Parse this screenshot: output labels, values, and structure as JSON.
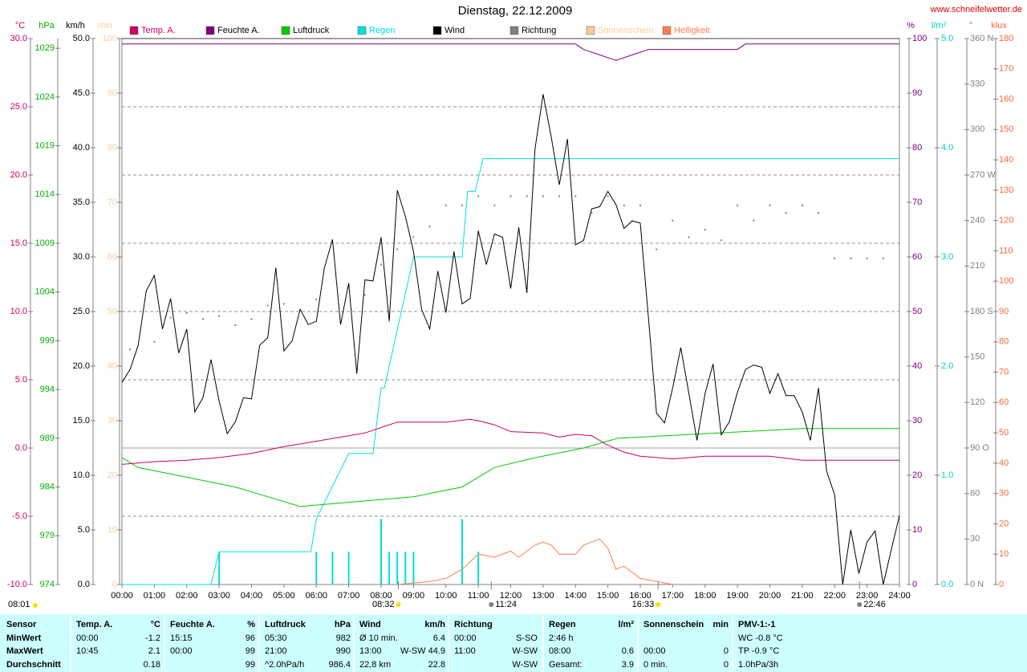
{
  "chart_data": {
    "type": "multi-axis-line",
    "title": "Dienstag, 22.12.2009",
    "source": "www.schneifelwetter.de",
    "report_time": "08:01",
    "xlim": [
      0,
      24
    ],
    "xticks": [
      {
        "value": 0,
        "label": "00:00"
      },
      {
        "value": 1,
        "label": "01:00"
      },
      {
        "value": 2,
        "label": "02:00"
      },
      {
        "value": 3,
        "label": "03:00"
      },
      {
        "value": 4,
        "label": "04:00"
      },
      {
        "value": 5,
        "label": "05:00"
      },
      {
        "value": 6,
        "label": "06:00"
      },
      {
        "value": 7,
        "label": "07:00"
      },
      {
        "value": 8,
        "label": "08:00"
      },
      {
        "value": 9,
        "label": "09:00"
      },
      {
        "value": 10,
        "label": "10:00"
      },
      {
        "value": 11,
        "label": "11:00"
      },
      {
        "value": 12,
        "label": "12:00"
      },
      {
        "value": 13,
        "label": "13:00"
      },
      {
        "value": 14,
        "label": "14:00"
      },
      {
        "value": 15,
        "label": "15:00"
      },
      {
        "value": 16,
        "label": "16:00"
      },
      {
        "value": 17,
        "label": "17:00"
      },
      {
        "value": 18,
        "label": "18:00"
      },
      {
        "value": 19,
        "label": "19:00"
      },
      {
        "value": 20,
        "label": "20:00"
      },
      {
        "value": 21,
        "label": "21:00"
      },
      {
        "value": 22,
        "label": "22:00"
      },
      {
        "value": 23,
        "label": "23:00"
      },
      {
        "value": 24,
        "label": "24:00"
      }
    ],
    "grid": true,
    "axes": [
      {
        "unit": "°C",
        "color": "#cc0066",
        "lim": [
          -10,
          30
        ],
        "ticks": [
          {
            "value": -10,
            "label": "-10.0"
          },
          {
            "value": -5,
            "label": "-5.0"
          },
          {
            "value": 0,
            "label": "0.0"
          },
          {
            "value": 5,
            "label": "5.0"
          },
          {
            "value": 10,
            "label": "10.0"
          },
          {
            "value": 15,
            "label": "15.0"
          },
          {
            "value": 20,
            "label": "20.0"
          },
          {
            "value": 25,
            "label": "25.0"
          },
          {
            "value": 30,
            "label": "30.0"
          }
        ]
      },
      {
        "unit": "hPa",
        "color": "#00b000",
        "lim": [
          974,
          1030
        ],
        "ticks": [
          974,
          979,
          984,
          989,
          994,
          999,
          1004,
          1009,
          1014,
          1019,
          1024,
          1029
        ]
      },
      {
        "unit": "km/h",
        "color": "#000000",
        "lim": [
          0,
          50
        ],
        "ticks": [
          {
            "value": 0,
            "label": "0.0"
          },
          {
            "value": 5,
            "label": "5.0"
          },
          {
            "value": 10,
            "label": "10.0"
          },
          {
            "value": 15,
            "label": "15.0"
          },
          {
            "value": 20,
            "label": "20.0"
          },
          {
            "value": 25,
            "label": "25.0"
          },
          {
            "value": 30,
            "label": "30.0"
          },
          {
            "value": 35,
            "label": "35.0"
          },
          {
            "value": 40,
            "label": "40.0"
          },
          {
            "value": 45,
            "label": "45.0"
          },
          {
            "value": 50,
            "label": "50.0"
          }
        ]
      },
      {
        "unit": "min",
        "color": "#ffcc99",
        "lim": [
          0,
          100
        ],
        "ticks": [
          0,
          10,
          20,
          30,
          40,
          50,
          60,
          70,
          80,
          90,
          100
        ]
      },
      {
        "unit": "%",
        "color": "#800080",
        "lim": [
          0,
          100
        ],
        "ticks": [
          0,
          10,
          20,
          30,
          40,
          50,
          60,
          70,
          80,
          90,
          100
        ]
      },
      {
        "unit": "l/m²",
        "color": "#00cccc",
        "lim": [
          0,
          5
        ],
        "ticks": [
          {
            "value": 0,
            "label": "0.0"
          },
          {
            "value": 1,
            "label": "1.0"
          },
          {
            "value": 2,
            "label": "2.0"
          },
          {
            "value": 3,
            "label": "3.0"
          },
          {
            "value": 4,
            "label": "4.0"
          },
          {
            "value": 5,
            "label": "5.0"
          }
        ]
      },
      {
        "unit": "°",
        "color": "#808080",
        "lim": [
          0,
          360
        ],
        "ticks": [
          {
            "value": 0,
            "label": "0 N"
          },
          30,
          60,
          {
            "value": 90,
            "label": "90 O"
          },
          120,
          150,
          {
            "value": 180,
            "label": "180 S"
          },
          210,
          240,
          {
            "value": 270,
            "label": "270 W"
          },
          300,
          330,
          {
            "value": 360,
            "label": "360 N"
          }
        ]
      },
      {
        "unit": "klux",
        "color": "#ff6633",
        "lim": [
          0,
          180
        ],
        "ticks": [
          0,
          10,
          20,
          30,
          40,
          50,
          60,
          70,
          80,
          90,
          100,
          110,
          120,
          130,
          140,
          150,
          160,
          170,
          180
        ]
      }
    ],
    "series": [
      {
        "name": "Temp. A.",
        "color": "#cc0066",
        "axis": "°C",
        "style": "line",
        "x": [
          0,
          1,
          2,
          3,
          4,
          5,
          6,
          7,
          7.5,
          8,
          8.5,
          9,
          10,
          10.75,
          11,
          11.5,
          12,
          13,
          13.5,
          14,
          14.5,
          15,
          15.5,
          16,
          16.5,
          17,
          18,
          19,
          20,
          21,
          22,
          23,
          24
        ],
        "values": [
          -1.2,
          -1.0,
          -0.9,
          -0.7,
          -0.4,
          0.1,
          0.5,
          0.9,
          1.1,
          1.5,
          1.9,
          1.9,
          1.9,
          2.1,
          2.0,
          1.7,
          1.2,
          1.1,
          0.8,
          1.0,
          0.9,
          0.2,
          -0.3,
          -0.6,
          -0.7,
          -0.8,
          -0.6,
          -0.6,
          -0.6,
          -0.9,
          -0.9,
          -0.9,
          -0.9
        ]
      },
      {
        "name": "Feuchte A.",
        "color": "#800080",
        "axis": "%",
        "style": "line",
        "x": [
          0,
          14,
          14.25,
          14.75,
          15.25,
          15.75,
          16.25,
          19,
          19.25,
          24
        ],
        "values": [
          99,
          99,
          98,
          97,
          96,
          97,
          98,
          98,
          99,
          99
        ]
      },
      {
        "name": "Luftdruck",
        "color": "#00cc00",
        "axis": "hPa",
        "style": "line",
        "x": [
          0,
          0.5,
          2,
          3.5,
          4.5,
          5.5,
          9,
          10.5,
          11,
          11.5,
          12.75,
          14.25,
          15.3,
          21,
          24
        ],
        "values": [
          987,
          986,
          985,
          984,
          983,
          982,
          983,
          984,
          985,
          986,
          987,
          988,
          989,
          990,
          990
        ]
      },
      {
        "name": "Regen",
        "color": "#00e0e0",
        "axis": "l/m²",
        "style": "line",
        "x": [
          0,
          2.75,
          3,
          5.83,
          6,
          6.5,
          7,
          7.75,
          8,
          8.1,
          9,
          10.5,
          10.67,
          10.9,
          11.15,
          24
        ],
        "values": [
          0,
          0,
          0.3,
          0.3,
          0.6,
          0.9,
          1.2,
          1.2,
          1.8,
          1.8,
          3.0,
          3.0,
          3.6,
          3.6,
          3.9,
          3.9
        ],
        "bar_x": [
          3,
          6,
          6.5,
          7,
          8,
          8.25,
          8.5,
          8.75,
          9,
          10.5,
          11
        ],
        "bar_values": [
          0.3,
          0.3,
          0.3,
          0.3,
          0.6,
          0.3,
          0.3,
          0.3,
          0.3,
          0.6,
          0.3
        ]
      },
      {
        "name": "Wind",
        "color": "#000000",
        "axis": "km/h",
        "style": "line",
        "x": [
          0,
          0.25,
          0.5,
          0.75,
          1,
          1.25,
          1.5,
          1.75,
          2,
          2.25,
          2.5,
          2.75,
          3,
          3.25,
          3.5,
          3.75,
          4,
          4.25,
          4.5,
          4.75,
          5,
          5.25,
          5.5,
          5.75,
          6,
          6.25,
          6.5,
          6.75,
          7,
          7.25,
          7.5,
          7.75,
          8,
          8.25,
          8.5,
          8.75,
          9,
          9.25,
          9.5,
          9.75,
          10,
          10.25,
          10.5,
          10.75,
          11,
          11.25,
          11.5,
          11.75,
          12,
          12.25,
          12.5,
          12.75,
          13,
          13.25,
          13.5,
          13.75,
          14,
          14.25,
          14.5,
          14.75,
          15,
          15.25,
          15.5,
          15.75,
          16,
          16.25,
          16.5,
          16.75,
          17,
          17.25,
          17.5,
          17.75,
          18,
          18.25,
          18.5,
          18.75,
          19,
          19.25,
          19.5,
          19.75,
          20,
          20.25,
          20.5,
          20.75,
          21,
          21.25,
          21.5,
          21.75,
          22,
          22.25,
          22.5,
          22.75,
          23,
          23.25,
          23.5,
          23.75,
          24
        ],
        "values": [
          18.5,
          19.7,
          21.9,
          26.9,
          28.3,
          23.4,
          26.2,
          21.2,
          23.4,
          15.8,
          17.1,
          20.6,
          16.8,
          13.8,
          14.9,
          17.1,
          17.0,
          21.9,
          22.6,
          29.0,
          21.4,
          22.3,
          25.2,
          23.8,
          24.1,
          29.0,
          31.6,
          23.8,
          27.6,
          19.3,
          27.9,
          27.8,
          31.8,
          24.1,
          36.1,
          33.7,
          30.5,
          25.2,
          23.4,
          28.7,
          24.9,
          30.5,
          25.7,
          26.2,
          32.4,
          29.3,
          32.1,
          31.8,
          27.1,
          32.7,
          26.7,
          39.9,
          44.9,
          41.0,
          36.6,
          40.8,
          31.1,
          31.5,
          34.4,
          34.6,
          36.0,
          34.8,
          32.6,
          33.3,
          33.1,
          24.5,
          15.7,
          14.8,
          18.0,
          21.7,
          17.5,
          13.2,
          17.5,
          20.2,
          13.7,
          14.9,
          17.6,
          19.7,
          20.1,
          19.9,
          17.5,
          19.3,
          17.3,
          17.3,
          15.8,
          13.2,
          18.0,
          10.4,
          8.2,
          0.0,
          5.0,
          1.0,
          3.9,
          4.9,
          0.0,
          3.2,
          6.3
        ]
      },
      {
        "name": "Richtung",
        "color": "#808080",
        "axis": "°",
        "style": "dots",
        "x": [
          0.25,
          1,
          1.5,
          2,
          2.5,
          3,
          3.5,
          4,
          4.5,
          5,
          6,
          7,
          7.5,
          8,
          8.5,
          9,
          9.5,
          10,
          10.5,
          11,
          11.5,
          12,
          12.5,
          13,
          13.5,
          14,
          14.5,
          15,
          15.5,
          16,
          16.5,
          17,
          17.5,
          18,
          18.5,
          19,
          19.5,
          20,
          20.5,
          21,
          21.5,
          22,
          22.5,
          23,
          23.5
        ],
        "values": [
          155,
          160,
          176,
          179,
          175,
          177,
          171,
          175,
          184,
          185,
          188,
          195,
          191,
          211,
          221,
          229,
          236,
          250,
          250,
          256,
          250,
          256,
          256,
          256,
          256,
          256,
          245,
          256,
          250,
          250,
          221,
          240,
          229,
          234,
          227,
          250,
          240,
          250,
          245,
          250,
          245,
          215,
          215,
          215,
          215
        ]
      },
      {
        "name": "Sonnenschein",
        "color": "#ffcc99",
        "axis": "min",
        "style": "line",
        "x": [],
        "values": []
      },
      {
        "name": "Helligkeit",
        "color": "#ff7f50",
        "axis": "klux",
        "style": "line",
        "x": [
          8.5,
          9,
          9.5,
          10,
          10.5,
          11,
          11.5,
          12,
          12.25,
          12.75,
          13,
          13.25,
          13.5,
          14,
          14.25,
          14.75,
          15,
          15.25,
          15.5,
          16,
          16.5,
          17
        ],
        "values": [
          0,
          0.5,
          1,
          2,
          5,
          10,
          9,
          11,
          9,
          13,
          14,
          13,
          10,
          10,
          13,
          15,
          12,
          5,
          6,
          2,
          1,
          0
        ]
      }
    ],
    "markers": [
      {
        "x": 8.533,
        "label": "08:32",
        "color": "#ffdd00"
      },
      {
        "x": 11.4,
        "label": "11:24",
        "color": "#808080"
      },
      {
        "x": 16.55,
        "label": "16:33",
        "color": "#ffdd00"
      },
      {
        "x": 22.767,
        "label": "22:46",
        "color": "#808080"
      }
    ]
  },
  "table": {
    "columns": [
      {
        "title": "Sensor",
        "rows": [
          {
            "left": "MinWert"
          },
          {
            "left": "MaxWert"
          },
          {
            "left": "Durchschnitt"
          }
        ]
      },
      {
        "title": "Temp. A.",
        "unit": "°C",
        "rows": [
          {
            "left": "00:00",
            "right": "-1.2"
          },
          {
            "left": "10:45",
            "right": "2.1"
          },
          {
            "right": "0.18"
          }
        ]
      },
      {
        "title": "Feuchte A.",
        "unit": "%",
        "rows": [
          {
            "left": "15:15",
            "right": "96"
          },
          {
            "left": "00:00",
            "right": "99"
          },
          {
            "right": "99"
          }
        ]
      },
      {
        "title": "Luftdruck",
        "unit": "hPa",
        "rows": [
          {
            "left": "05:30",
            "right": "982"
          },
          {
            "left": "21:00",
            "right": "990"
          },
          {
            "left": "^2.0hPa/h",
            "right": "986.4"
          }
        ]
      },
      {
        "title": "Wind",
        "unit": "km/h",
        "rows": [
          {
            "left": "Ø 10 min.",
            "right": "6.4"
          },
          {
            "left": "13:00",
            "right": "W-SW 44.9"
          },
          {
            "left": "22,8 km",
            "right": "22.8"
          }
        ]
      },
      {
        "title": "Richtung",
        "rows": [
          {
            "left": "00:00",
            "right": "S-SO"
          },
          {
            "left": "11:00",
            "right": "W-SW"
          },
          {
            "right": "W-SW"
          }
        ]
      },
      {
        "title": "Regen",
        "unit": "l/m²",
        "rows": [
          {
            "left": "2:46 h"
          },
          {
            "left": "08:00",
            "right": "0.6"
          },
          {
            "left": "Gesamt:",
            "right": "3.9"
          }
        ]
      },
      {
        "title": "Sonnenschein",
        "unit": "min",
        "rows": [
          {},
          {
            "left": "00:00",
            "right": "0"
          },
          {
            "left": "0 min.",
            "right": "0"
          }
        ]
      },
      {
        "title": "PMV-1:-1",
        "rows": [
          {
            "left": "WC -0.8 °C"
          },
          {
            "left": "TP -0.9 °C"
          },
          {
            "left": "1.0hPa/3h"
          }
        ]
      }
    ]
  }
}
